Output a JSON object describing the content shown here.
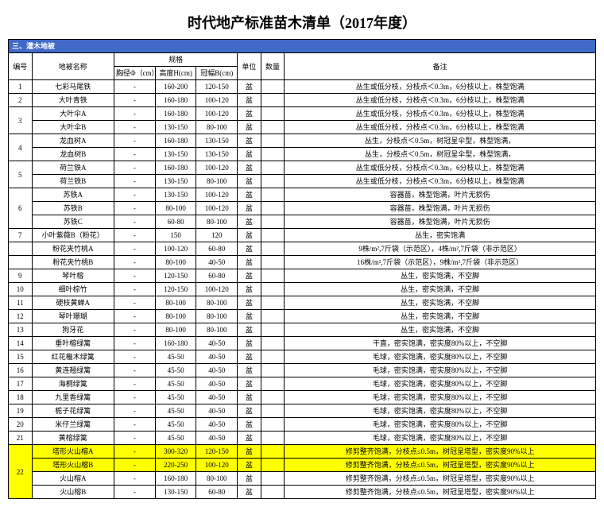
{
  "title": "时代地产标准苗木清单（2017年度）",
  "section": "三、灌木地被",
  "headers": {
    "h0": "编号",
    "h1": "地被名称",
    "h2": "规格",
    "h2a": "胸径Φ（cm）",
    "h2b": "高度H(cm)",
    "h2c": "冠幅B(cm)",
    "h3": "单位",
    "h4": "数量",
    "h5": "备注"
  },
  "rows": [
    {
      "n": "1",
      "nm": "七彩马尾铁",
      "a": "-",
      "h": "160-200",
      "w": "120-150",
      "u": "盆",
      "r": "丛生或低分枝，分枝点＜0.3m，6分枝以上，株型饱满"
    },
    {
      "n": "2",
      "nm": "大叶青铁",
      "a": "-",
      "h": "160-180",
      "w": "100-120",
      "u": "盆",
      "r": "丛生或低分枝，分枝点＜0.3m，6分枝以上，株型饱满"
    },
    {
      "n": "3",
      "nm": "大叶伞A",
      "a": "-",
      "h": "160-180",
      "w": "100-120",
      "u": "盆",
      "r": "丛生或低分枝，分枝点＜0.3m，6分枝以上，株型饱满",
      "rs": 2
    },
    {
      "nm": "大叶伞B",
      "a": "-",
      "h": "130-150",
      "w": "80-100",
      "u": "盆",
      "r": "丛生或低分枝，分枝点＜0.3m，6分枝以上，株型饱满"
    },
    {
      "n": "4",
      "nm": "龙血树A",
      "a": "-",
      "h": "160-180",
      "w": "130-150",
      "u": "盆",
      "r": "丛生，分枝点＜0.5m，树冠呈伞型，株型饱满，",
      "rs": 2
    },
    {
      "nm": "龙血树B",
      "a": "-",
      "h": "130-150",
      "w": "130-150",
      "u": "盆",
      "r": "丛生，分枝点＜0.5m，树冠呈伞型，株型饱满，"
    },
    {
      "n": "5",
      "nm": "荷兰铁A",
      "a": "-",
      "h": "160-180",
      "w": "100-120",
      "u": "盆",
      "r": "丛生或低分枝，分枝点＜0.3m，6分枝以上，株型饱满",
      "rs": 2
    },
    {
      "nm": "荷兰铁B",
      "a": "-",
      "h": "130-150",
      "w": "80-100",
      "u": "盆",
      "r": "丛生或低分枝，分枝点＜0.3m，6分枝以上，株型饱满"
    },
    {
      "n": "6",
      "nm": "苏铁A",
      "a": "-",
      "h": "130-150",
      "w": "100-120",
      "u": "盆",
      "r": "容器苗，株型饱满，叶片无损伤",
      "rs": 3
    },
    {
      "nm": "苏铁B",
      "a": "-",
      "h": "80-100",
      "w": "100-120",
      "u": "盆",
      "r": "容器苗，株型饱满，叶片无损伤"
    },
    {
      "nm": "苏铁C",
      "a": "-",
      "h": "60-80",
      "w": "80-100",
      "u": "盆",
      "r": "容器苗，株型饱满，叶片无损伤"
    },
    {
      "n": "7",
      "nm": "小叶紫薇B（粉花）",
      "a": "-",
      "h": "150",
      "w": "120",
      "u": "盆",
      "r": "丛生，密实饱满"
    },
    {
      "n": "",
      "nm": "粉花夹竹桃A",
      "a": "-",
      "h": "100-120",
      "w": "60-80",
      "u": "盆",
      "r": "9株/m²,7斤袋（示范区），4株/m²,7斤袋（非示范区）"
    },
    {
      "n": "",
      "nm": "粉花夹竹桃B",
      "a": "-",
      "h": "80-100",
      "w": "40-50",
      "u": "盆",
      "r": "16株/m²,7斤袋（示范区），9株/m²,7斤袋（非示范区）"
    },
    {
      "n": "9",
      "nm": "琴叶榕",
      "a": "-",
      "h": "120-150",
      "w": "60-80",
      "u": "盆",
      "r": "丛生，密实饱满，不空脚"
    },
    {
      "n": "10",
      "nm": "细叶棕竹",
      "a": "-",
      "h": "120-150",
      "w": "100-120",
      "u": "盆",
      "r": "丛生，密实饱满，不空脚"
    },
    {
      "n": "11",
      "nm": "硬枝黄蝉A",
      "a": "-",
      "h": "80-100",
      "w": "80-100",
      "u": "盆",
      "r": "丛生，密实饱满，不空脚"
    },
    {
      "n": "12",
      "nm": "琴叶珊瑚",
      "a": "-",
      "h": "80-100",
      "w": "80-100",
      "u": "盆",
      "r": "丛生，密实饱满，不空脚"
    },
    {
      "n": "13",
      "nm": "狗牙花",
      "a": "-",
      "h": "80-100",
      "w": "80-100",
      "u": "盆",
      "r": "丛生，密实饱满，不空脚"
    },
    {
      "n": "14",
      "nm": "垂叶榕绿篱",
      "a": "-",
      "h": "160-180",
      "w": "40-50",
      "u": "盆",
      "r": "干直，密实饱满，密实度80%以上，不空脚"
    },
    {
      "n": "15",
      "nm": "红花檵木绿篱",
      "a": "-",
      "h": "45-50",
      "w": "40-50",
      "u": "盆",
      "r": "毛球，密实饱满，密实度80%以上，不空脚"
    },
    {
      "n": "16",
      "nm": "黄连翘绿篱",
      "a": "-",
      "h": "45-50",
      "w": "40-50",
      "u": "盆",
      "r": "毛球，密实饱满，密实度80%以上，不空脚"
    },
    {
      "n": "17",
      "nm": "海桐绿篱",
      "a": "-",
      "h": "45-50",
      "w": "40-50",
      "u": "盆",
      "r": "毛球，密实饱满，密实度80%以上，不空脚"
    },
    {
      "n": "18",
      "nm": "九里香绿篱",
      "a": "-",
      "h": "45-50",
      "w": "40-50",
      "u": "盆",
      "r": "毛球，密实饱满，密实度80%以上，不空脚"
    },
    {
      "n": "19",
      "nm": "栀子花绿篱",
      "a": "-",
      "h": "45-50",
      "w": "40-50",
      "u": "盆",
      "r": "毛球，密实饱满，密实度80%以上，不空脚"
    },
    {
      "n": "20",
      "nm": "米仔兰绿篱",
      "a": "-",
      "h": "45-50",
      "w": "40-50",
      "u": "盆",
      "r": "毛球，密实饱满，密实度80%以上，不空脚"
    },
    {
      "n": "21",
      "nm": "黄榕绿篱",
      "a": "-",
      "h": "45-50",
      "w": "40-50",
      "u": "盆",
      "r": "毛球，密实饱满，密实度80%以上，不空脚"
    },
    {
      "n": "22",
      "nm": "塔形火山榕A",
      "a": "-",
      "h": "300-320",
      "w": "120-150",
      "u": "盆",
      "r": "修剪整齐饱满，分枝点≤0.5m，树冠呈塔型，密实度90%以上",
      "hl": 1,
      "rs": 4
    },
    {
      "nm": "塔形火山榕B",
      "a": "-",
      "h": "220-250",
      "w": "100-120",
      "u": "盆",
      "r": "修剪整齐饱满，分枝点≤0.5m，树冠呈塔型，密实度90%以上",
      "hl": 1
    },
    {
      "nm": "火山榕A",
      "a": "-",
      "h": "160-180",
      "w": "80-100",
      "u": "盆",
      "r": "修剪整齐饱满，分枝点≤0.5m，树冠呈塔型，密实度90%以上"
    },
    {
      "nm": "火山榕B",
      "a": "-",
      "h": "130-150",
      "w": "60-80",
      "u": "盆",
      "r": "修剪整齐饱满，分枝点≤0.5m，树冠呈塔型，密实度90%以上"
    }
  ]
}
